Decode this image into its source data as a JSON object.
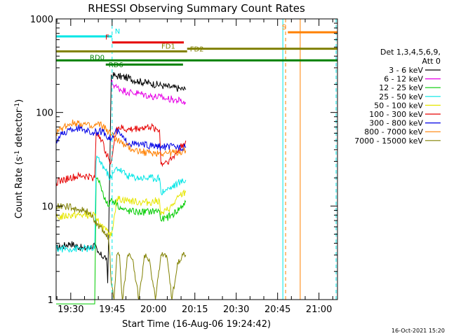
{
  "chart_data": {
    "type": "line",
    "title": "RHESSI Observing Summary Count Rates",
    "xlabel": "Start Time (16-Aug-06 19:24:42)",
    "ylabel": "Count Rate (s",
    "ylabel_sup1": "-1",
    "ylabel_mid": " detector",
    "ylabel_sup2": "-1",
    "ylabel_end": ")",
    "y_scale": "log",
    "ylim": [
      1,
      1000
    ],
    "xlim_minutes_after_start": [
      0,
      102
    ],
    "x_ticks": [
      {
        "label": "19:30",
        "t": 5.3
      },
      {
        "label": "19:45",
        "t": 20.3
      },
      {
        "label": "20:00",
        "t": 35.3
      },
      {
        "label": "20:15",
        "t": 50.3
      },
      {
        "label": "20:30",
        "t": 65.3
      },
      {
        "label": "20:45",
        "t": 80.3
      },
      {
        "label": "21:00",
        "t": 95.3
      }
    ],
    "y_ticks": [
      {
        "label": "1",
        "v": 1
      },
      {
        "label": "10",
        "v": 10
      },
      {
        "label": "100",
        "v": 100
      },
      {
        "label": "1000",
        "v": 1000
      }
    ],
    "legend_header_line1": "Det 1,3,4,5,6,9,",
    "legend_header_line2": "Att 0",
    "legend_placement": "right",
    "timestamp": "16-Oct-2021 15:20",
    "series": [
      {
        "name": "3 - 6 keV",
        "color": "#000000",
        "t": [
          0,
          5,
          10,
          14,
          15,
          16,
          18.3,
          18.7,
          19,
          20,
          22,
          26,
          30,
          34,
          38,
          40,
          42,
          45,
          47
        ],
        "v": [
          3.5,
          4,
          3.5,
          3.8,
          3.2,
          3,
          2.8,
          1.5,
          4,
          250,
          245,
          235,
          215,
          205,
          195,
          190,
          185,
          180,
          175
        ]
      },
      {
        "name": "6 - 12 keV",
        "color": "#e600e6",
        "t": [
          20,
          22,
          26,
          30,
          34,
          38,
          40,
          42,
          45,
          47
        ],
        "v": [
          210,
          185,
          165,
          160,
          150,
          145,
          140,
          138,
          133,
          125
        ]
      },
      {
        "name": "12 - 25 keV",
        "color": "#00cc00",
        "t": [
          0,
          14,
          14.5,
          15,
          16,
          17,
          18,
          19,
          20,
          22,
          24,
          26,
          30,
          34,
          37.5,
          38,
          40,
          42,
          45,
          47
        ],
        "v": [
          0.8,
          0.8,
          20,
          20,
          17,
          14,
          11,
          10,
          12,
          10.5,
          9.2,
          8.8,
          8.6,
          8.7,
          8.9,
          7,
          7.5,
          8,
          9.5,
          11
        ]
      },
      {
        "name": "25 - 50 keV",
        "color": "#00e6e6",
        "t": [
          0,
          5,
          10,
          14,
          14.5,
          15,
          16,
          18,
          19,
          20,
          22,
          26,
          30,
          34,
          37.5,
          38,
          40,
          42,
          45,
          47
        ],
        "v": [
          3.5,
          3.5,
          3.5,
          3.5,
          30,
          33,
          30,
          24,
          21,
          20,
          26,
          21,
          20,
          20,
          20,
          14,
          15,
          16,
          18,
          19
        ]
      },
      {
        "name": "50 - 100 keV",
        "color": "#e6e600",
        "t": [
          0,
          5,
          10,
          14,
          14.5,
          15,
          16,
          18,
          19,
          20,
          22,
          26,
          30,
          34,
          37.5,
          38,
          40,
          42,
          45,
          47
        ],
        "v": [
          7.5,
          8,
          8,
          8,
          7,
          7,
          6.5,
          5.5,
          5,
          4.8,
          12,
          11.5,
          11,
          11,
          11.5,
          8,
          9,
          10,
          13,
          14
        ]
      },
      {
        "name": "100 - 300 keV",
        "color": "#e60000",
        "t": [
          0,
          5,
          10,
          14,
          14.5,
          15,
          16,
          18,
          19,
          20,
          22,
          26,
          30,
          34,
          37.5,
          38,
          40,
          42,
          45,
          47
        ],
        "v": [
          18,
          20,
          21,
          20,
          60,
          60,
          55,
          38,
          32,
          30,
          70,
          65,
          68,
          70,
          65,
          28,
          30,
          32,
          42,
          50
        ]
      },
      {
        "name": "300 - 800 keV",
        "color": "#0000e6",
        "t": [
          0,
          2,
          5,
          8,
          11,
          13,
          15,
          17,
          19,
          20,
          22,
          25,
          28,
          31,
          34,
          38,
          40,
          43,
          45,
          47
        ],
        "v": [
          50,
          58,
          65,
          68,
          65,
          60,
          62,
          63,
          55,
          52,
          64,
          50,
          46,
          45,
          44,
          43,
          43,
          43,
          43,
          42
        ]
      },
      {
        "name": "800 - 7000 keV",
        "color": "#ff8000",
        "t": [
          0,
          2,
          5,
          8,
          11,
          13,
          15,
          17,
          19,
          20,
          22,
          25,
          28,
          31,
          34,
          38,
          40,
          43,
          45,
          47
        ],
        "v": [
          60,
          68,
          76,
          78,
          74,
          68,
          75,
          72,
          62,
          58,
          52,
          44,
          40,
          38,
          37,
          37,
          37,
          37,
          38,
          39
        ]
      },
      {
        "name": "7000 - 15000 keV",
        "color": "#808000",
        "t": [
          0,
          3,
          6,
          9,
          12,
          14,
          15,
          16,
          17,
          18,
          19,
          19.5,
          20,
          21,
          22,
          23,
          24,
          26,
          28,
          30,
          32,
          34,
          36,
          38,
          40,
          42,
          44,
          46,
          47
        ],
        "v": [
          10,
          10,
          9.5,
          9,
          8.5,
          7,
          6.5,
          6,
          5.5,
          5,
          4.5,
          3,
          1.5,
          1,
          3,
          3,
          1,
          3,
          2.5,
          1,
          3,
          2.5,
          1,
          3,
          3,
          1,
          2.5,
          3,
          3
        ]
      }
    ],
    "annotations": [
      {
        "label": "N",
        "color": "#00e6e6",
        "t0": 0,
        "t1": 20.3,
        "v": 650
      },
      {
        "label": "F",
        "color": "#e60000",
        "t0": 20.3,
        "t1": 46.3,
        "v": 560
      },
      {
        "label": "FD1",
        "color": "#808000",
        "t0": 0,
        "t1": 47.5,
        "v": 450
      },
      {
        "label": "FD2",
        "color": "#808000",
        "t0": 47.5,
        "t1": 102,
        "v": 480
      },
      {
        "label": "RD0",
        "color": "#008000",
        "t0": 0,
        "t1": 102,
        "v": 360
      },
      {
        "label": "RD6",
        "color": "#008000",
        "t0": 18,
        "t1": 46,
        "v": 325
      },
      {
        "label": "S",
        "color": "#ff8000",
        "t0": 84,
        "t1": 102,
        "v": 720
      }
    ],
    "vertical_markers": [
      {
        "t": 20.3,
        "color": "#00e6e6",
        "dashed": true
      },
      {
        "t": 82.2,
        "color": "#00e6e6",
        "dashed": false
      },
      {
        "t": 83.2,
        "color": "#ff8000",
        "dashed": true
      },
      {
        "t": 88.5,
        "color": "#ff8000",
        "dashed": false
      },
      {
        "t": 101.5,
        "color": "#00e6e6",
        "dashed": true
      }
    ]
  }
}
